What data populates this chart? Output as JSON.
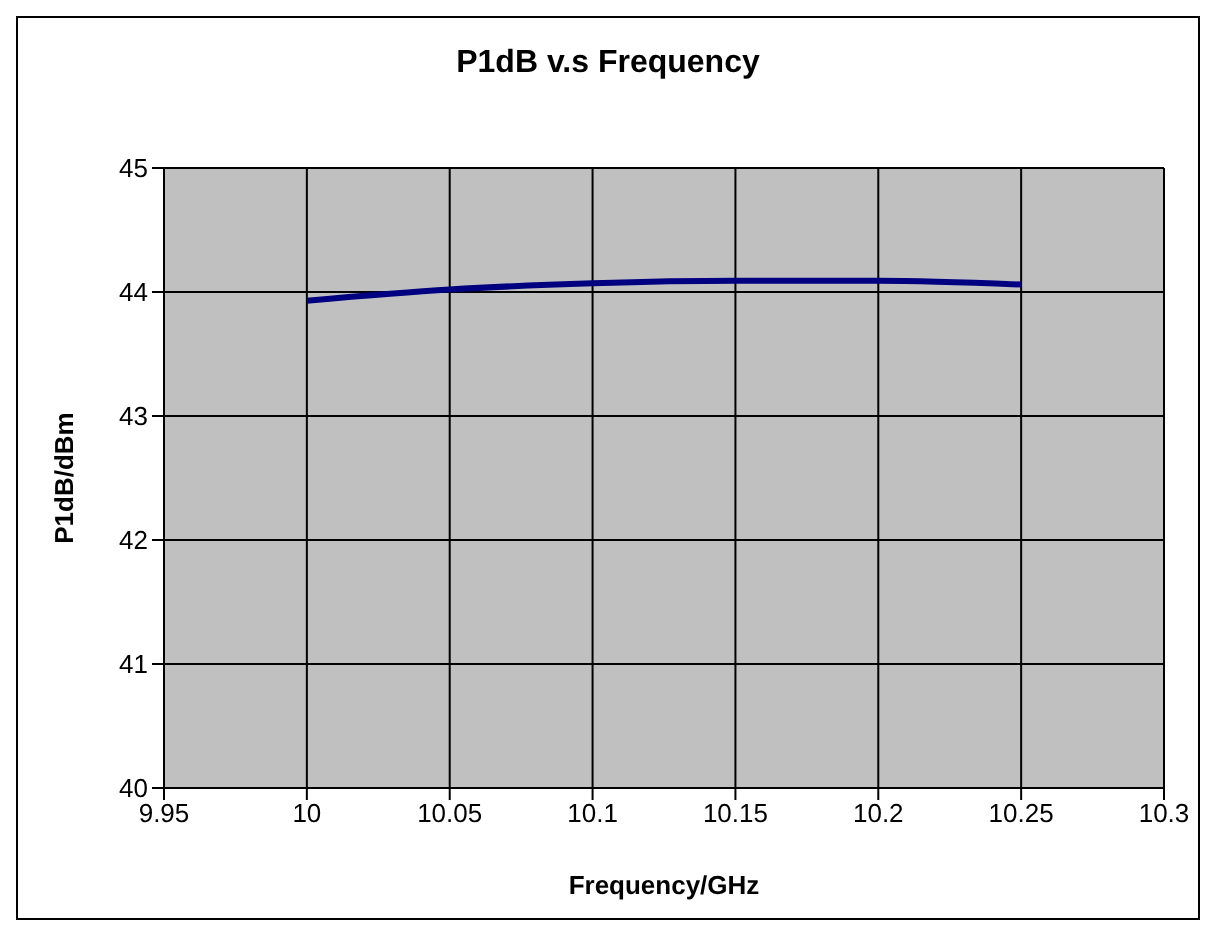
{
  "chart_data": {
    "type": "line",
    "title": "P1dB  v.s  Frequency",
    "xlabel": "Frequency/GHz",
    "ylabel": "P1dB/dBm",
    "x": [
      10,
      10.05,
      10.1,
      10.15,
      10.2,
      10.25
    ],
    "series": [
      {
        "color": "#000080",
        "values": [
          43.93,
          44.02,
          44.07,
          44.09,
          44.09,
          44.06
        ]
      }
    ],
    "xlim": [
      9.95,
      10.3
    ],
    "xticks": [
      9.95,
      10,
      10.05,
      10.1,
      10.15,
      10.2,
      10.25,
      10.3
    ],
    "ylim": [
      40,
      45
    ],
    "yticks": [
      40,
      41,
      42,
      43,
      44,
      45
    ],
    "grid": true,
    "legend": false,
    "marker": "none",
    "line_style": "solid"
  }
}
